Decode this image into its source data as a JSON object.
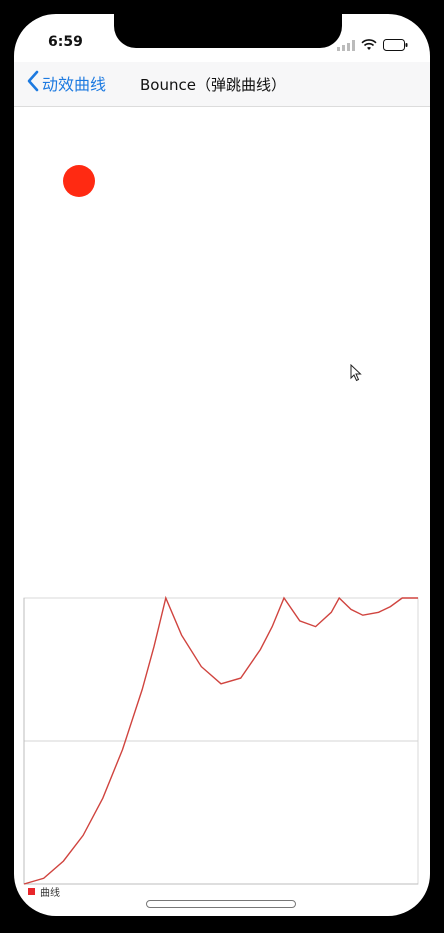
{
  "status_bar": {
    "time": "6:59",
    "signal_icon": "signal-icon",
    "wifi_icon": "wifi-icon",
    "battery_icon": "battery-icon"
  },
  "nav": {
    "back_label": "动效曲线",
    "title": "Bounce（弹跳曲线）"
  },
  "colors": {
    "accent": "#1d7ae0",
    "ball": "#ff2a12",
    "curve": "#d0443f"
  },
  "chart_data": {
    "type": "line",
    "title": "",
    "xlabel": "",
    "ylabel": "",
    "xlim": [
      0,
      1
    ],
    "ylim": [
      0,
      1
    ],
    "grid": true,
    "legend": "bottom-left",
    "series": [
      {
        "name": "曲线",
        "x": [
          0.0,
          0.05,
          0.1,
          0.15,
          0.2,
          0.25,
          0.3,
          0.33,
          0.36,
          0.4,
          0.45,
          0.5,
          0.55,
          0.6,
          0.63,
          0.66,
          0.7,
          0.74,
          0.78,
          0.8,
          0.83,
          0.86,
          0.9,
          0.93,
          0.96,
          1.0
        ],
        "y": [
          0.0,
          0.02,
          0.08,
          0.17,
          0.3,
          0.47,
          0.68,
          0.83,
          1.0,
          0.87,
          0.76,
          0.7,
          0.72,
          0.82,
          0.9,
          1.0,
          0.92,
          0.9,
          0.95,
          1.0,
          0.96,
          0.94,
          0.95,
          0.97,
          1.0,
          1.0
        ]
      }
    ]
  }
}
